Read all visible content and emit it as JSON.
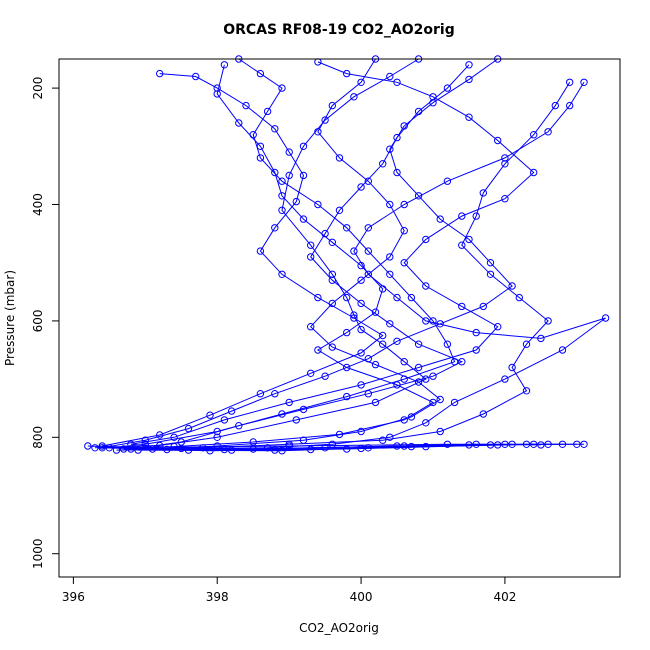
{
  "chart_data": {
    "type": "scatter",
    "title": "ORCAS RF08-19 CO2_AO2orig",
    "xlabel": "CO2_AO2orig",
    "ylabel": "Pressure (mbar)",
    "xlim": [
      395.8,
      403.6
    ],
    "ylim": [
      1040,
      150
    ],
    "y_reversed": true,
    "x_ticks": [
      "396",
      "398",
      "400",
      "402"
    ],
    "y_ticks": [
      "200",
      "400",
      "600",
      "800",
      "1000"
    ],
    "marker": "open-circle",
    "line_connected": true,
    "color": "#0000ff",
    "grid": false,
    "legend": "none",
    "series": [
      {
        "values": [
          [
            400.8,
            150
          ],
          [
            400.4,
            180
          ],
          [
            399.9,
            215
          ],
          [
            399.5,
            255
          ],
          [
            399.2,
            300
          ],
          [
            399.0,
            350
          ],
          [
            398.9,
            410
          ],
          [
            399.3,
            470
          ],
          [
            399.6,
            520
          ],
          [
            399.8,
            560
          ],
          [
            399.9,
            590
          ],
          [
            400.0,
            615
          ],
          [
            400.3,
            640
          ],
          [
            400.6,
            670
          ],
          [
            400.9,
            700
          ],
          [
            400.2,
            740
          ],
          [
            399.1,
            770
          ],
          [
            398.0,
            800
          ],
          [
            397.2,
            814
          ],
          [
            396.3,
            818
          ],
          [
            399.0,
            815
          ],
          [
            401.2,
            812
          ],
          [
            402.6,
            812
          ],
          [
            403.1,
            812
          ]
        ]
      },
      {
        "values": [
          [
            398.3,
            150
          ],
          [
            398.6,
            175
          ],
          [
            398.9,
            200
          ],
          [
            398.7,
            240
          ],
          [
            398.5,
            280
          ],
          [
            398.6,
            320
          ],
          [
            398.9,
            360
          ],
          [
            399.4,
            400
          ],
          [
            399.8,
            440
          ],
          [
            400.1,
            480
          ],
          [
            400.4,
            520
          ],
          [
            400.7,
            560
          ],
          [
            401.0,
            600
          ],
          [
            401.2,
            640
          ],
          [
            401.3,
            670
          ],
          [
            400.6,
            700
          ],
          [
            399.8,
            730
          ],
          [
            398.9,
            760
          ],
          [
            398.0,
            790
          ],
          [
            397.0,
            812
          ],
          [
            396.5,
            818
          ],
          [
            398.5,
            820
          ],
          [
            400.5,
            815
          ],
          [
            402.3,
            812
          ],
          [
            402.8,
            812
          ]
        ]
      },
      {
        "values": [
          [
            401.5,
            160
          ],
          [
            401.2,
            200
          ],
          [
            400.8,
            240
          ],
          [
            400.5,
            285
          ],
          [
            400.3,
            330
          ],
          [
            400.0,
            370
          ],
          [
            399.7,
            410
          ],
          [
            399.5,
            450
          ],
          [
            399.3,
            490
          ],
          [
            399.6,
            530
          ],
          [
            400.0,
            570
          ],
          [
            400.4,
            605
          ],
          [
            400.8,
            640
          ],
          [
            401.4,
            670
          ],
          [
            401.0,
            695
          ],
          [
            400.1,
            725
          ],
          [
            399.2,
            752
          ],
          [
            398.3,
            780
          ],
          [
            397.5,
            808
          ],
          [
            396.8,
            820
          ],
          [
            397.6,
            822
          ],
          [
            399.5,
            818
          ],
          [
            401.6,
            812
          ],
          [
            402.5,
            813
          ]
        ]
      },
      {
        "values": [
          [
            402.9,
            190
          ],
          [
            402.7,
            230
          ],
          [
            402.4,
            280
          ],
          [
            402.0,
            330
          ],
          [
            401.7,
            380
          ],
          [
            401.6,
            420
          ],
          [
            401.4,
            470
          ],
          [
            401.8,
            520
          ],
          [
            402.2,
            560
          ],
          [
            402.6,
            600
          ],
          [
            402.3,
            640
          ],
          [
            402.1,
            680
          ],
          [
            402.3,
            720
          ],
          [
            401.7,
            760
          ],
          [
            401.1,
            790
          ],
          [
            400.3,
            805
          ],
          [
            399.0,
            812
          ],
          [
            397.8,
            818
          ],
          [
            396.6,
            822
          ],
          [
            398.1,
            821
          ],
          [
            400.6,
            815
          ],
          [
            402.1,
            812
          ]
        ]
      },
      {
        "values": [
          [
            397.2,
            175
          ],
          [
            397.7,
            180
          ],
          [
            398.0,
            200
          ],
          [
            398.4,
            230
          ],
          [
            398.8,
            270
          ],
          [
            399.0,
            310
          ],
          [
            399.2,
            350
          ],
          [
            399.1,
            395
          ],
          [
            398.8,
            440
          ],
          [
            398.6,
            480
          ],
          [
            398.9,
            520
          ],
          [
            399.4,
            560
          ],
          [
            399.9,
            595
          ],
          [
            400.3,
            625
          ],
          [
            400.0,
            655
          ],
          [
            399.3,
            690
          ],
          [
            398.6,
            725
          ],
          [
            397.9,
            762
          ],
          [
            397.2,
            796
          ],
          [
            396.4,
            815
          ],
          [
            397.3,
            821
          ],
          [
            398.8,
            822
          ],
          [
            400.1,
            818
          ],
          [
            401.5,
            813
          ],
          [
            403.0,
            812
          ]
        ]
      },
      {
        "values": [
          [
            399.4,
            155
          ],
          [
            399.8,
            175
          ],
          [
            400.5,
            190
          ],
          [
            401.0,
            215
          ],
          [
            401.5,
            250
          ],
          [
            401.9,
            290
          ],
          [
            402.4,
            345
          ],
          [
            402.0,
            390
          ],
          [
            401.4,
            420
          ],
          [
            400.9,
            460
          ],
          [
            400.6,
            500
          ],
          [
            400.9,
            540
          ],
          [
            401.4,
            575
          ],
          [
            401.9,
            610
          ],
          [
            401.6,
            650
          ],
          [
            400.8,
            680
          ],
          [
            400.0,
            710
          ],
          [
            399.0,
            740
          ],
          [
            398.1,
            770
          ],
          [
            397.4,
            800
          ],
          [
            396.8,
            812
          ],
          [
            397.5,
            819
          ],
          [
            399.3,
            821
          ],
          [
            400.9,
            816
          ],
          [
            402.4,
            812
          ]
        ]
      },
      {
        "values": [
          [
            403.1,
            190
          ],
          [
            402.9,
            230
          ],
          [
            402.6,
            275
          ],
          [
            402.0,
            320
          ],
          [
            401.2,
            360
          ],
          [
            400.6,
            400
          ],
          [
            400.1,
            440
          ],
          [
            399.9,
            480
          ],
          [
            400.1,
            520
          ],
          [
            400.5,
            560
          ],
          [
            400.9,
            600
          ],
          [
            401.6,
            620
          ],
          [
            402.5,
            630
          ],
          [
            403.4,
            595
          ],
          [
            402.8,
            650
          ],
          [
            402.0,
            700
          ],
          [
            401.3,
            740
          ],
          [
            400.9,
            775
          ],
          [
            400.4,
            800
          ],
          [
            399.6,
            812
          ],
          [
            398.7,
            818
          ],
          [
            397.1,
            820
          ],
          [
            396.2,
            815
          ]
        ]
      },
      {
        "values": [
          [
            398.1,
            160
          ],
          [
            398.0,
            210
          ],
          [
            398.3,
            260
          ],
          [
            398.6,
            300
          ],
          [
            398.8,
            345
          ],
          [
            398.9,
            385
          ],
          [
            399.2,
            425
          ],
          [
            399.6,
            465
          ],
          [
            400.0,
            505
          ],
          [
            400.3,
            545
          ],
          [
            400.2,
            585
          ],
          [
            399.8,
            620
          ],
          [
            399.4,
            650
          ],
          [
            399.8,
            680
          ],
          [
            400.5,
            710
          ],
          [
            401.0,
            740
          ],
          [
            400.6,
            770
          ],
          [
            399.7,
            795
          ],
          [
            398.5,
            808
          ],
          [
            397.4,
            816
          ],
          [
            396.7,
            820
          ],
          [
            398.2,
            822
          ],
          [
            400.0,
            819
          ],
          [
            401.8,
            813
          ]
        ]
      },
      {
        "values": [
          [
            400.2,
            150
          ],
          [
            400.0,
            190
          ],
          [
            399.6,
            230
          ],
          [
            399.4,
            275
          ],
          [
            399.7,
            320
          ],
          [
            400.1,
            360
          ],
          [
            400.4,
            400
          ],
          [
            400.6,
            445
          ],
          [
            400.4,
            490
          ],
          [
            400.0,
            530
          ],
          [
            399.6,
            570
          ],
          [
            399.3,
            610
          ],
          [
            399.6,
            645
          ],
          [
            400.2,
            675
          ],
          [
            400.8,
            705
          ],
          [
            401.1,
            735
          ],
          [
            400.7,
            765
          ],
          [
            400.0,
            790
          ],
          [
            399.2,
            805
          ],
          [
            398.0,
            815
          ],
          [
            396.9,
            822
          ],
          [
            398.9,
            823
          ],
          [
            400.7,
            816
          ],
          [
            402.0,
            812
          ]
        ]
      },
      {
        "values": [
          [
            401.9,
            150
          ],
          [
            401.5,
            185
          ],
          [
            401.0,
            225
          ],
          [
            400.6,
            265
          ],
          [
            400.4,
            305
          ],
          [
            400.5,
            345
          ],
          [
            400.8,
            385
          ],
          [
            401.1,
            425
          ],
          [
            401.5,
            460
          ],
          [
            401.8,
            500
          ],
          [
            402.1,
            540
          ],
          [
            401.7,
            575
          ],
          [
            401.1,
            605
          ],
          [
            400.5,
            635
          ],
          [
            400.1,
            665
          ],
          [
            399.5,
            695
          ],
          [
            398.8,
            725
          ],
          [
            398.2,
            755
          ],
          [
            397.6,
            785
          ],
          [
            397.0,
            805
          ],
          [
            396.4,
            818
          ],
          [
            397.9,
            823
          ],
          [
            399.8,
            820
          ],
          [
            401.9,
            813
          ]
        ]
      }
    ]
  }
}
